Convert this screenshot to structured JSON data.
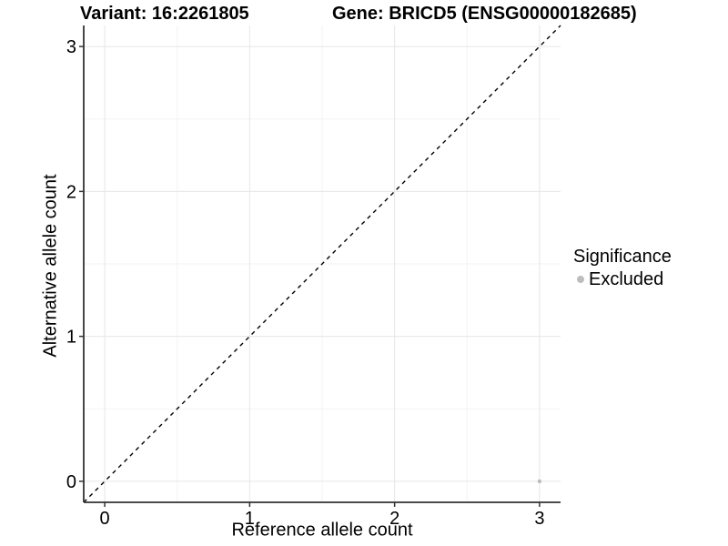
{
  "titles": {
    "variant": "Variant: 16:2261805",
    "gene": "Gene: BRICD5 (ENSG00000182685)"
  },
  "legend": {
    "title": "Significance",
    "items": [
      {
        "label": "Excluded",
        "color": "#bdbdbd"
      }
    ]
  },
  "chart_data": {
    "type": "scatter",
    "xlabel": "Reference allele count",
    "ylabel": "Alternative allele count",
    "xlim": [
      -0.145,
      3.145
    ],
    "ylim": [
      -0.145,
      3.145
    ],
    "x_ticks": [
      0,
      1,
      2,
      3
    ],
    "y_ticks": [
      0,
      1,
      2,
      3
    ],
    "x_minor_ticks": [
      0.5,
      1.5,
      2.5
    ],
    "y_minor_ticks": [
      0.5,
      1.5,
      2.5
    ],
    "grid": "major+minor",
    "legend_position": "right",
    "reference_line": {
      "slope": 1,
      "intercept": 0,
      "style": "dashed",
      "color": "#000000"
    },
    "series": [
      {
        "name": "Excluded",
        "color": "#bdbdbd",
        "points": [
          {
            "x": 3,
            "y": 0
          }
        ]
      }
    ]
  }
}
